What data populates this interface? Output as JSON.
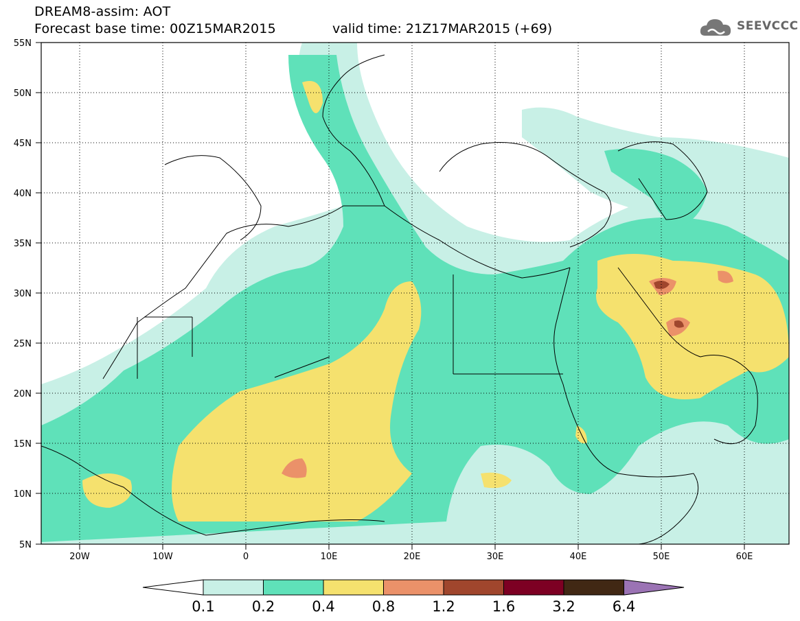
{
  "header": {
    "title": "DREAM8-assim: AOT",
    "base_time": "Forecast base time: 00Z15MAR2015",
    "valid_time": "valid time: 21Z17MAR2015 (+69)",
    "logo_text": "SEEVCCC"
  },
  "map": {
    "lon_range": [
      -25,
      65
    ],
    "lat_range": [
      5,
      55
    ],
    "lat_labels": [
      "55N",
      "50N",
      "45N",
      "40N",
      "35N",
      "30N",
      "25N",
      "20N",
      "15N",
      "10N",
      "5N"
    ],
    "lon_labels": [
      "20W",
      "10W",
      "0",
      "10E",
      "20E",
      "30E",
      "40E",
      "50E",
      "60E"
    ]
  },
  "colorbar": {
    "labels": [
      "0.1",
      "0.2",
      "0.4",
      "0.8",
      "1.2",
      "1.6",
      "3.2",
      "6.4"
    ],
    "colors": [
      "#ffffff",
      "#c8f0e6",
      "#5fe1b9",
      "#f5e16e",
      "#eb9169",
      "#a0462d",
      "#7d0023",
      "#412814",
      "#9b73b4"
    ]
  }
}
